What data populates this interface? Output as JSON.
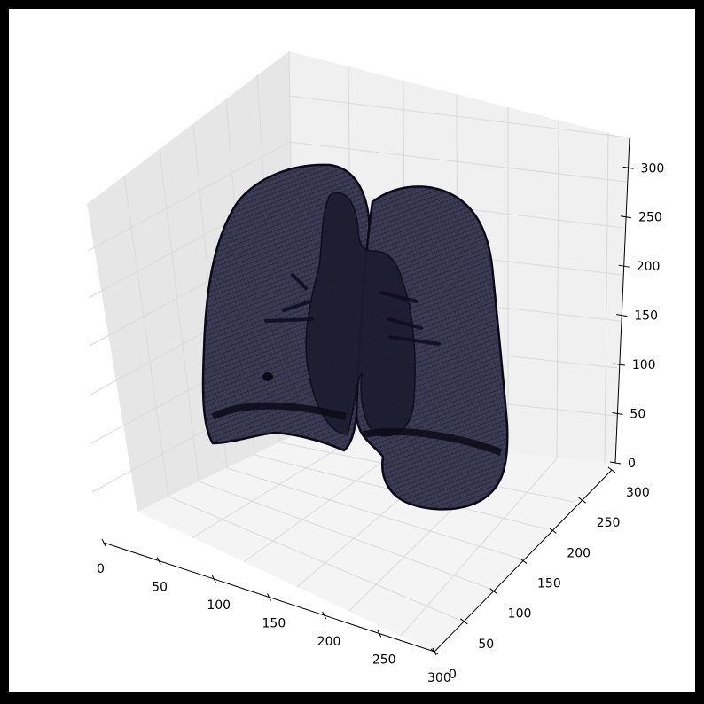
{
  "chart_data": {
    "type": "3d-surface",
    "title": "",
    "xlabel": "",
    "ylabel": "",
    "zlabel": "",
    "grid": true,
    "colors": {
      "figure_background": "#000000",
      "axes_background": "#ffffff",
      "pane_light": "#f2f2f2",
      "pane_mid": "#e9e9e9",
      "pane_dark": "#e2e2e2",
      "grid": "#d9d9d9",
      "surface_fill": "#3c3c55",
      "surface_edge": "#0a0a18"
    },
    "axes": {
      "x": {
        "range": [
          0,
          300
        ],
        "ticks": [
          "0",
          "50",
          "100",
          "150",
          "200",
          "250",
          "300"
        ]
      },
      "y": {
        "range": [
          0,
          300
        ],
        "ticks": [
          "0",
          "50",
          "100",
          "150",
          "200",
          "250",
          "300"
        ]
      },
      "z": {
        "range": [
          0,
          330
        ],
        "ticks": [
          "0",
          "50",
          "100",
          "150",
          "200",
          "250",
          "300"
        ]
      }
    },
    "surface": {
      "name": "",
      "description_visible": "dark wireframe mesh"
    }
  }
}
